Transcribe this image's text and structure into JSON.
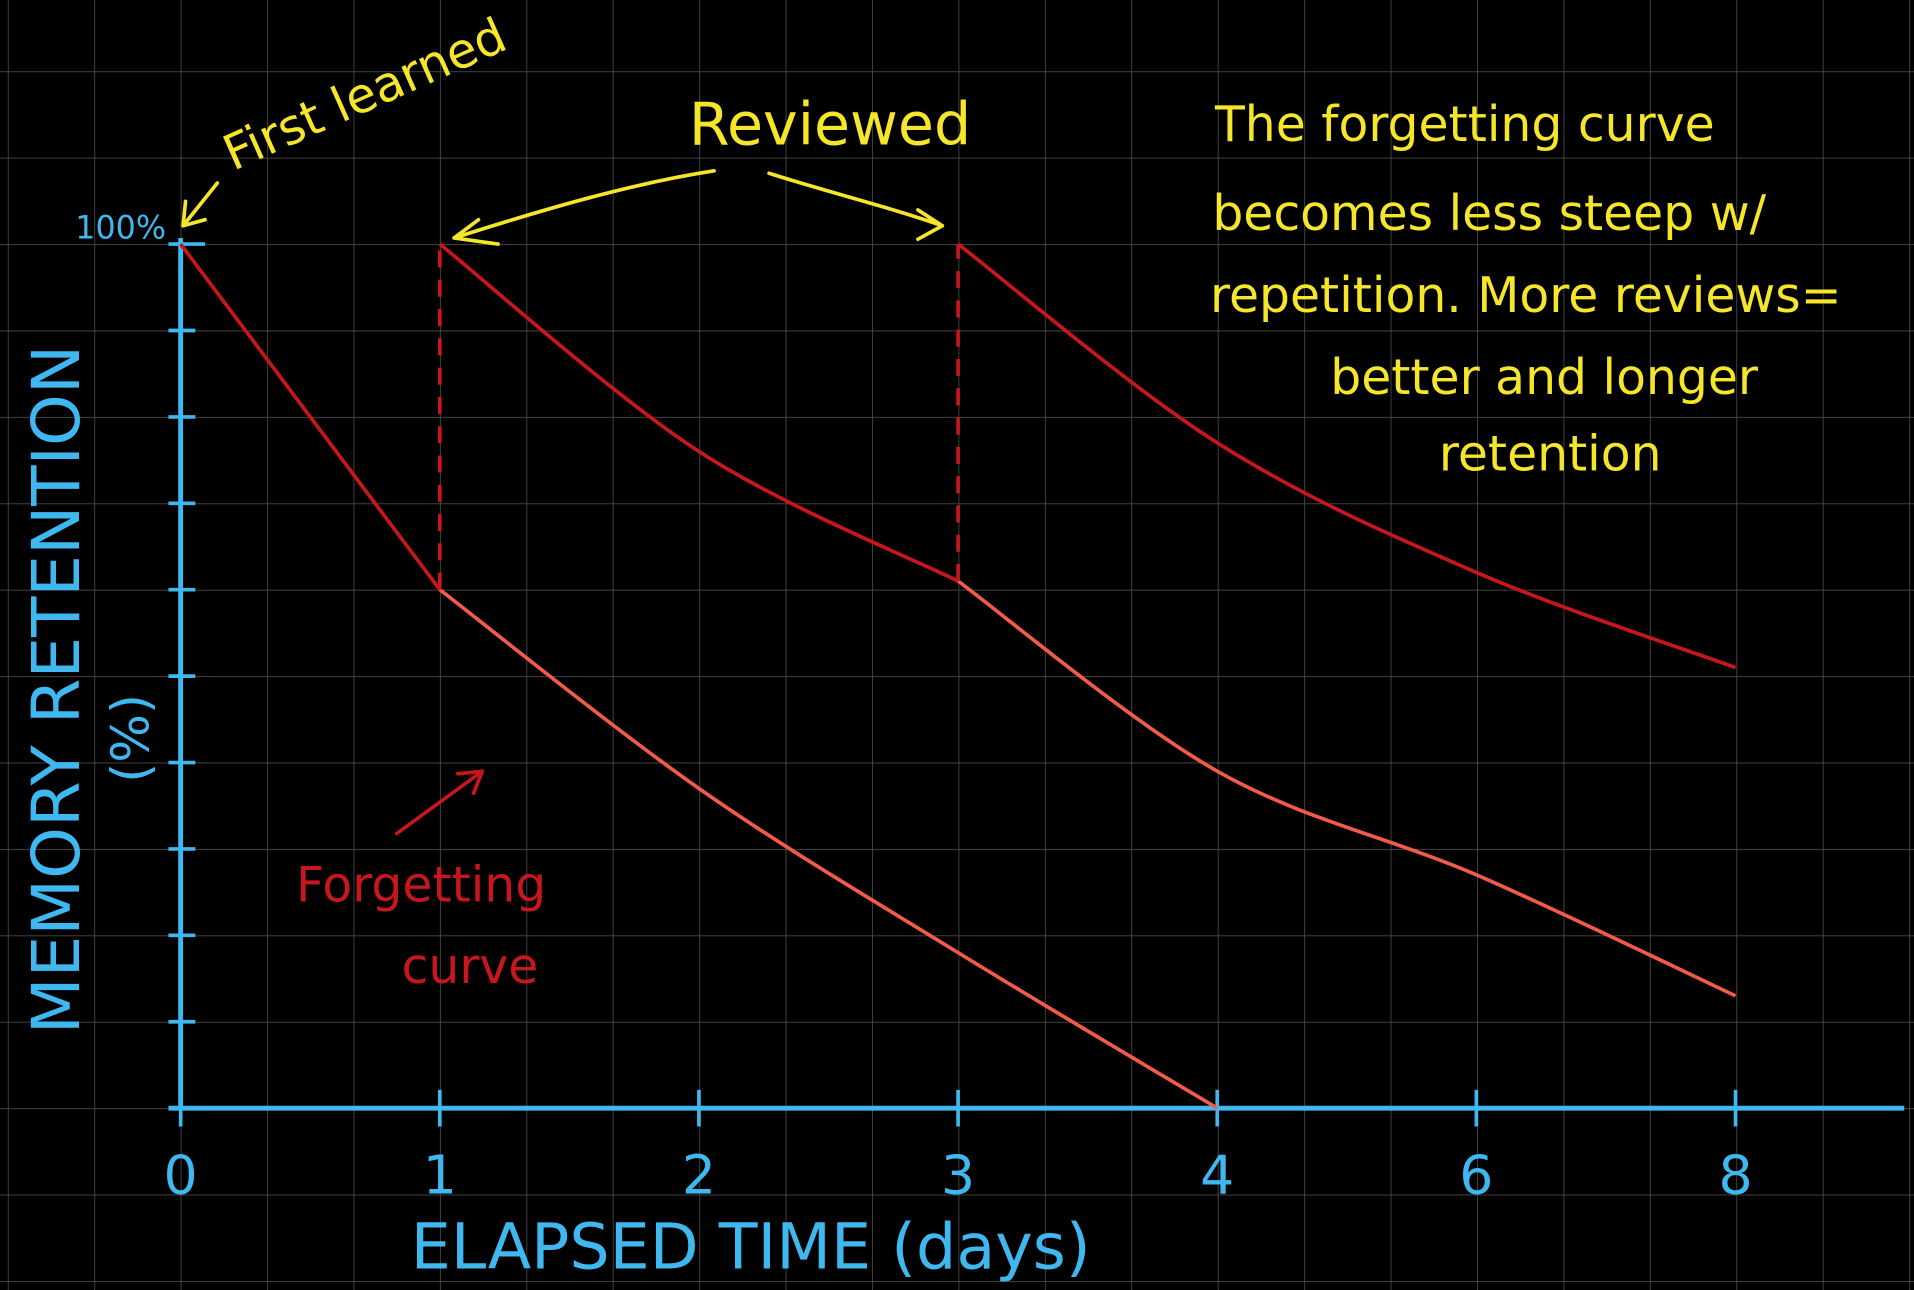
{
  "chart_data": {
    "type": "line",
    "categories": [
      "0",
      "1",
      "2",
      "3",
      "4",
      "6",
      "8"
    ],
    "series": [
      {
        "color": "#c8161d",
        "tail_color": "#f25a4a",
        "values": [
          100,
          60,
          37,
          18,
          0,
          null,
          null
        ]
      },
      {
        "color": "#c8161d",
        "tail_color": "#f25a4a",
        "values": [
          null,
          100,
          76,
          61,
          39,
          27,
          13
        ]
      },
      {
        "color": "#c8161d",
        "tail_color": "#f25a4a",
        "values": [
          null,
          null,
          null,
          100,
          77,
          62,
          51
        ]
      }
    ],
    "ylim": [
      0,
      100
    ],
    "yticks": [
      {
        "value": 100,
        "label": "100%"
      }
    ],
    "yminorticks": [
      0,
      10,
      20,
      30,
      40,
      50,
      60,
      70,
      80,
      90
    ],
    "xlabel": "ELAPSED TIME (days)",
    "ylabel": "MEMORY RETENTION",
    "ylabel_unit": "(%)",
    "axis_color": "#3fb8f0",
    "annotations": {
      "first_learned": "First learned",
      "reviewed": "Reviewed",
      "note": [
        "The forgetting curve",
        "becomes less steep w/",
        "repetition. More reviews=",
        "better and longer",
        "retention"
      ],
      "forgetting_curve": [
        "Forgetting",
        "curve"
      ]
    }
  }
}
